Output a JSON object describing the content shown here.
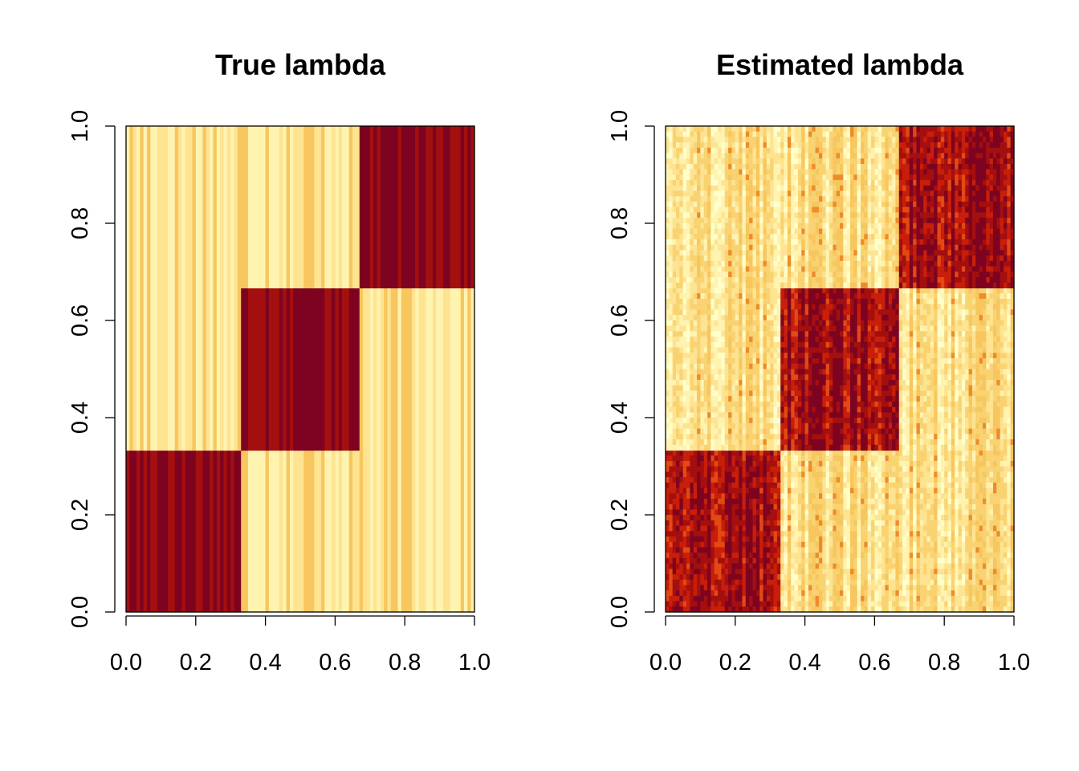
{
  "chart_data": [
    {
      "type": "heatmap",
      "title": "True lambda",
      "xlabel": "",
      "ylabel": "",
      "xlim": [
        0.0,
        1.0
      ],
      "ylim": [
        0.0,
        1.0
      ],
      "x_ticks": [
        "0.0",
        "0.2",
        "0.4",
        "0.6",
        "0.8",
        "1.0"
      ],
      "y_ticks": [
        "0.0",
        "0.2",
        "0.4",
        "0.6",
        "0.8",
        "1.0"
      ],
      "grid": false,
      "palette": [
        "#FFFFCC",
        "#FFF3B0",
        "#FEE391",
        "#F9D372",
        "#F7C65E",
        "#EE8B2C",
        "#E24A12",
        "#C81E0A",
        "#A40F0F",
        "#7D0320"
      ],
      "row_boundaries": [
        0.0,
        0.333,
        0.667,
        1.0
      ],
      "column_blocks": [
        0.0,
        0.333,
        0.667,
        1.0
      ],
      "block_levels": [
        [
          9,
          1,
          1
        ],
        [
          1,
          9,
          1
        ],
        [
          1,
          1,
          9
        ]
      ],
      "n_columns": 100,
      "rowwise_noise": false
    },
    {
      "type": "heatmap",
      "title": "Estimated lambda",
      "xlabel": "",
      "ylabel": "",
      "xlim": [
        0.0,
        1.0
      ],
      "ylim": [
        0.0,
        1.0
      ],
      "x_ticks": [
        "0.0",
        "0.2",
        "0.4",
        "0.6",
        "0.8",
        "1.0"
      ],
      "y_ticks": [
        "0.0",
        "0.2",
        "0.4",
        "0.6",
        "0.8",
        "1.0"
      ],
      "grid": false,
      "palette": [
        "#FFFFCC",
        "#FFF3B0",
        "#FEE391",
        "#F9D372",
        "#F7C65E",
        "#EE8B2C",
        "#E24A12",
        "#C81E0A",
        "#A40F0F",
        "#7D0320"
      ],
      "row_boundaries": [
        0.0,
        0.333,
        0.667,
        1.0
      ],
      "column_blocks": [
        0.0,
        0.333,
        0.667,
        1.0
      ],
      "block_levels": [
        [
          8,
          1,
          1
        ],
        [
          1,
          8,
          1
        ],
        [
          1,
          1,
          8
        ]
      ],
      "n_columns": 100,
      "rowwise_noise": true
    }
  ]
}
